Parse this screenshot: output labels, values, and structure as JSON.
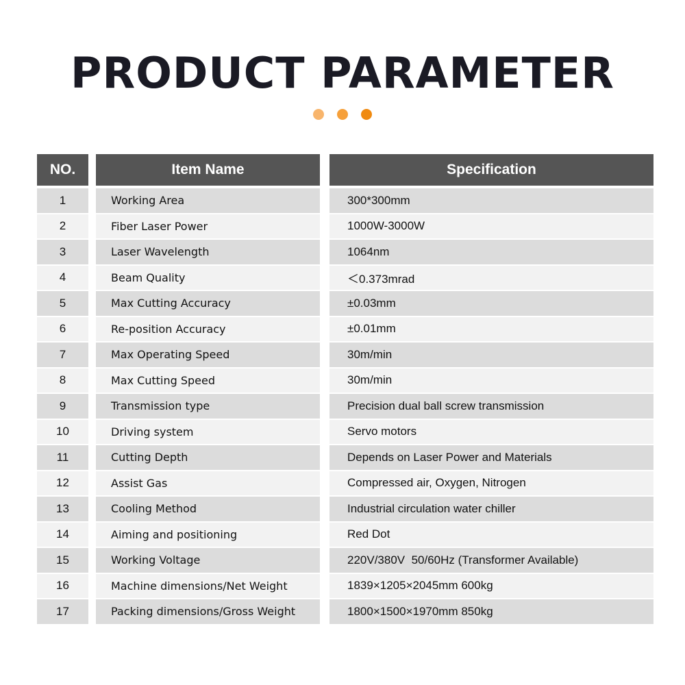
{
  "title": "PRODUCT PARAMETER",
  "dot_colors": [
    "#f8b56c",
    "#f6a03a",
    "#f08a10"
  ],
  "header": {
    "no": "NO.",
    "item": "Item Name",
    "spec": "Specification"
  },
  "rows": [
    {
      "no": "1",
      "item": "Working Area",
      "spec": "300*300mm"
    },
    {
      "no": "2",
      "item": "Fiber Laser Power",
      "spec": "1000W-3000W"
    },
    {
      "no": "3",
      "item": "Laser Wavelength",
      "spec": "1064nm"
    },
    {
      "no": "4",
      "item": "Beam Quality",
      "spec": "＜0.373mrad"
    },
    {
      "no": "5",
      "item": "Max Cutting Accuracy",
      "spec": "±0.03mm"
    },
    {
      "no": "6",
      "item": "Re-position Accuracy",
      "spec": "±0.01mm"
    },
    {
      "no": "7",
      "item": "Max Operating Speed",
      "spec": "30m/min"
    },
    {
      "no": "8",
      "item": "Max Cutting Speed",
      "spec": "30m/min"
    },
    {
      "no": "9",
      "item": "Transmission type",
      "spec": "Precision dual ball screw transmission"
    },
    {
      "no": "10",
      "item": "Driving system",
      "spec": "Servo motors"
    },
    {
      "no": "11",
      "item": "Cutting Depth",
      "spec": "Depends on Laser Power and Materials"
    },
    {
      "no": "12",
      "item": "Assist Gas",
      "spec": "Compressed air, Oxygen, Nitrogen"
    },
    {
      "no": "13",
      "item": "Cooling Method",
      "spec": "Industrial circulation water chiller"
    },
    {
      "no": "14",
      "item": "Aiming and positioning",
      "spec": "Red Dot"
    },
    {
      "no": "15",
      "item": "Working Voltage",
      "spec": "220V/380V  50/60Hz (Transformer Available)"
    },
    {
      "no": "16",
      "item": "Machine dimensions/Net Weight",
      "spec": "1839×1205×2045mm 600kg"
    },
    {
      "no": "17",
      "item": "Packing dimensions/Gross Weight",
      "spec": "1800×1500×1970mm 850kg"
    }
  ]
}
